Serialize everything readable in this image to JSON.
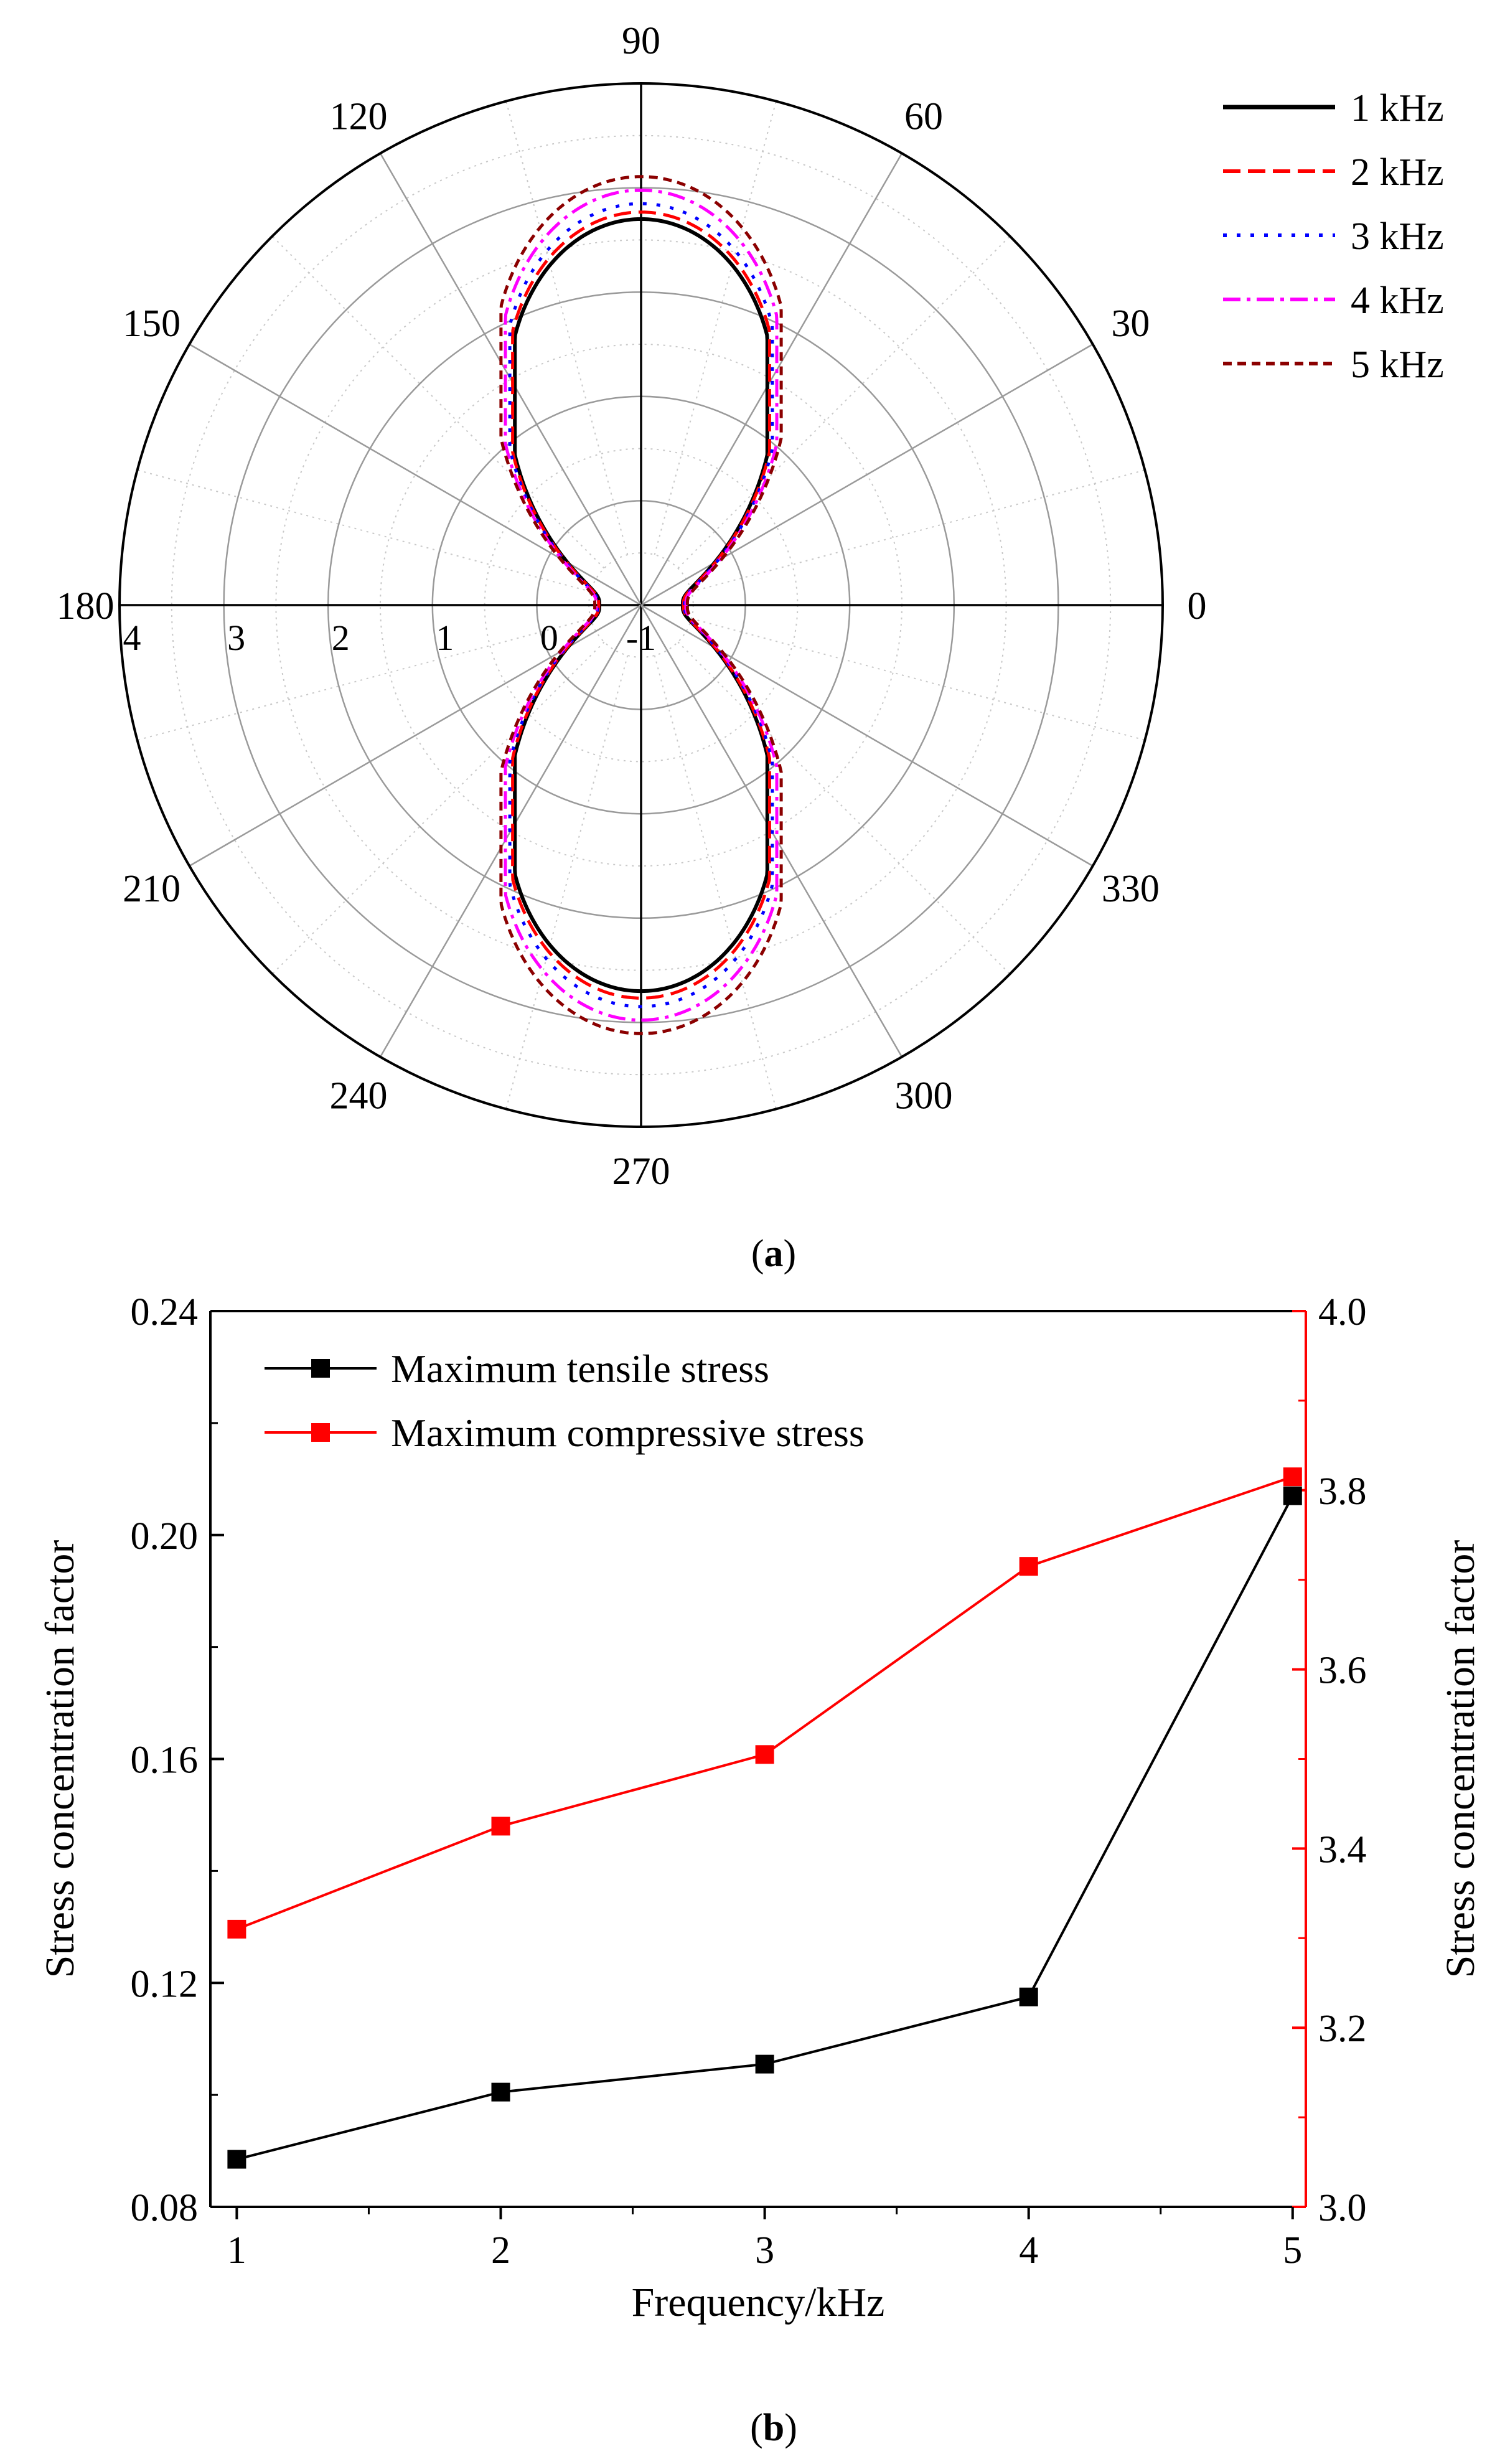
{
  "chart_data": [
    {
      "type": "polar-line",
      "panel_label": "(a)",
      "panel_letter": "a",
      "angle_ticks": [
        "0",
        "30",
        "60",
        "90",
        "120",
        "150",
        "180",
        "210",
        "240",
        "270",
        "300",
        "330"
      ],
      "radial_ticks": [
        "-1",
        "0",
        "1",
        "2",
        "3",
        "4"
      ],
      "radial_range": [
        -1,
        4
      ],
      "legend_position": "right",
      "series": [
        {
          "name": "1 kHz",
          "color": "#000000",
          "dash": "solid",
          "scale": 1.0
        },
        {
          "name": "2 kHz",
          "color": "#ff0000",
          "dash": "dash",
          "scale": 1.018
        },
        {
          "name": "3 kHz",
          "color": "#0000ff",
          "dash": "dot",
          "scale": 1.04
        },
        {
          "name": "4 kHz",
          "color": "#ff00ff",
          "dash": "dashdot",
          "scale": 1.075
        },
        {
          "name": "5 kHz",
          "color": "#8b0000",
          "dash": "shortdash",
          "scale": 1.11
        }
      ]
    },
    {
      "type": "line",
      "panel_label": "(b)",
      "panel_letter": "b",
      "x": [
        1,
        2,
        3,
        4,
        5
      ],
      "xticks": [
        "1",
        "2",
        "3",
        "4",
        "5"
      ],
      "xlabel": "Frequency/kHz",
      "xlim": [
        0.9,
        5.05
      ],
      "ylabel_left": "Stress concentration factor",
      "ylabel_right": "Stress concentration factor",
      "ylim_left": [
        0.08,
        0.24
      ],
      "ylim_right": [
        3.0,
        4.0
      ],
      "yticks_left": [
        "0.08",
        "0.12",
        "0.16",
        "0.20",
        "0.24"
      ],
      "yticks_right": [
        "3.0",
        "3.2",
        "3.4",
        "3.6",
        "3.8",
        "4.0"
      ],
      "legend_position": "top-left",
      "series": [
        {
          "name": "Maximum tensile stress",
          "axis": "left",
          "color": "#000000",
          "values": [
            0.0885,
            0.1005,
            0.1055,
            0.1175,
            0.207
          ]
        },
        {
          "name": "Maximum compressive stress",
          "axis": "right",
          "color": "#ff0000",
          "values": [
            3.31,
            3.425,
            3.505,
            3.715,
            3.815
          ]
        }
      ]
    }
  ]
}
